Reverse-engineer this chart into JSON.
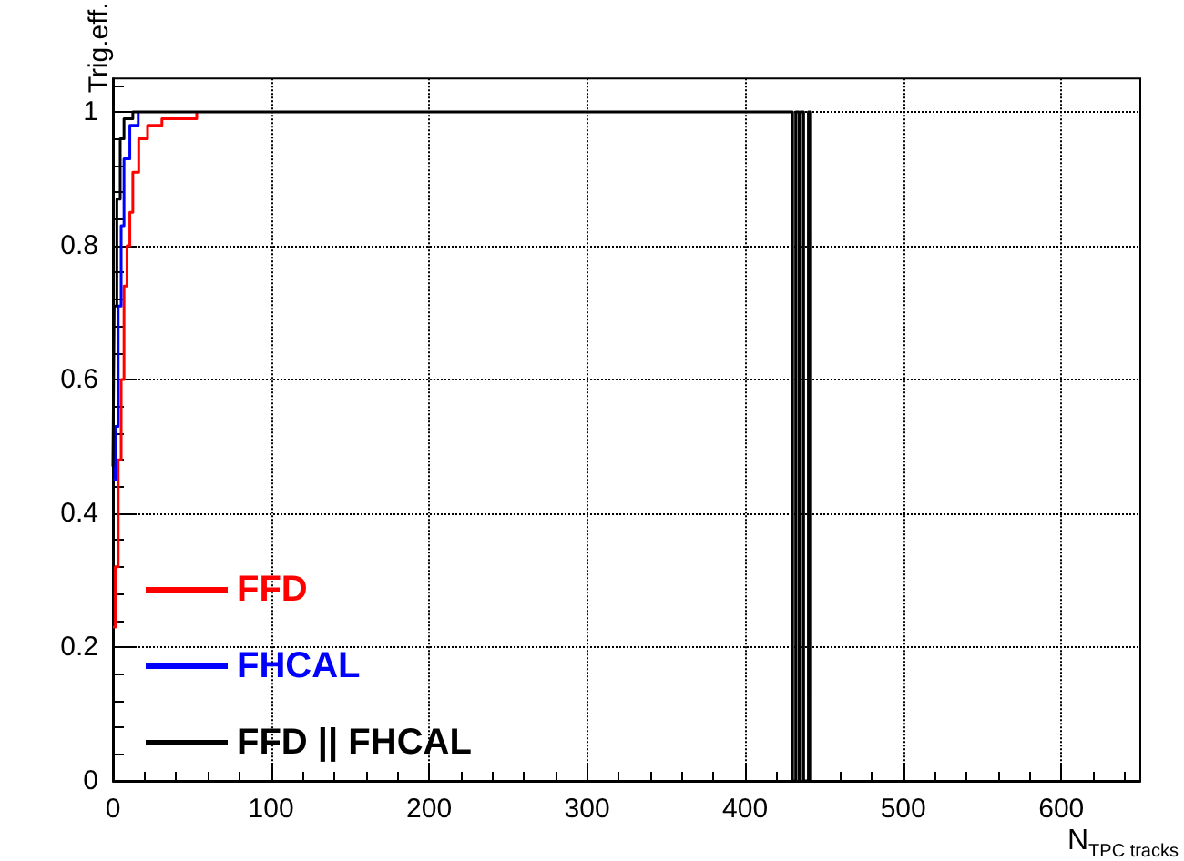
{
  "chart_data": {
    "type": "step",
    "xlabel": "N$_{TPC tracks}$",
    "ylabel": "Trig.eff.",
    "xlim": [
      0,
      650
    ],
    "xticks": [
      0,
      100,
      200,
      300,
      400,
      500,
      600
    ],
    "ylim": [
      0,
      1.05
    ],
    "yticks": [
      0,
      0.2,
      0.4,
      0.6,
      0.8,
      1
    ],
    "grid": true,
    "legend": "bottom left",
    "marker": "none",
    "line_style": "solid",
    "series": [
      {
        "name": "FFD",
        "color": "#ff0000",
        "x": [
          0,
          1.5,
          3.3,
          5.2,
          7,
          8.9,
          10.7,
          12.6,
          16.3,
          21.9,
          31,
          53
        ],
        "values": [
          0.23,
          0.32,
          0.48,
          0.6,
          0.74,
          0.8,
          0.85,
          0.91,
          0.96,
          0.98,
          0.99,
          1
        ]
      },
      {
        "name": "FHCAL",
        "color": "#0000ff",
        "x": [
          0,
          1.5,
          3.3,
          5.2,
          7,
          10.7,
          16
        ],
        "values": [
          0.45,
          0.53,
          0.71,
          0.83,
          0.93,
          0.98,
          1
        ]
      },
      {
        "name": "FFD || FHCAL",
        "color": "#000000",
        "x": [
          0,
          0.8,
          2.5,
          4.6,
          7,
          12.6,
          430,
          432,
          434,
          435,
          437,
          440,
          441.5
        ],
        "values": [
          0.47,
          0.71,
          0.87,
          0.96,
          0.99,
          1,
          0,
          1,
          0,
          1,
          0,
          1,
          0
        ]
      }
    ]
  }
}
